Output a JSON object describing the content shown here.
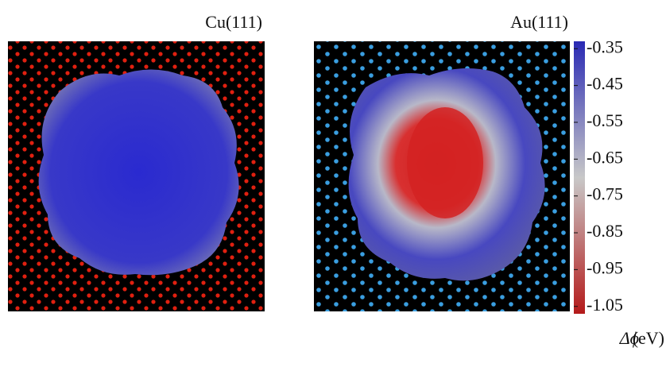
{
  "panels": [
    {
      "label": "Cu(111)"
    },
    {
      "label": "Au(111)"
    }
  ],
  "colorbar": {
    "symbol": "Δϕ",
    "unit": "(eV)",
    "lim": [
      -1.07,
      -0.33
    ],
    "ticks": [
      -0.35,
      -0.45,
      -0.55,
      -0.65,
      -0.75,
      -0.85,
      -0.95,
      -1.05
    ],
    "colors": [
      "#b41a1a",
      "#c8c8c8",
      "#2a2ab4"
    ]
  }
}
